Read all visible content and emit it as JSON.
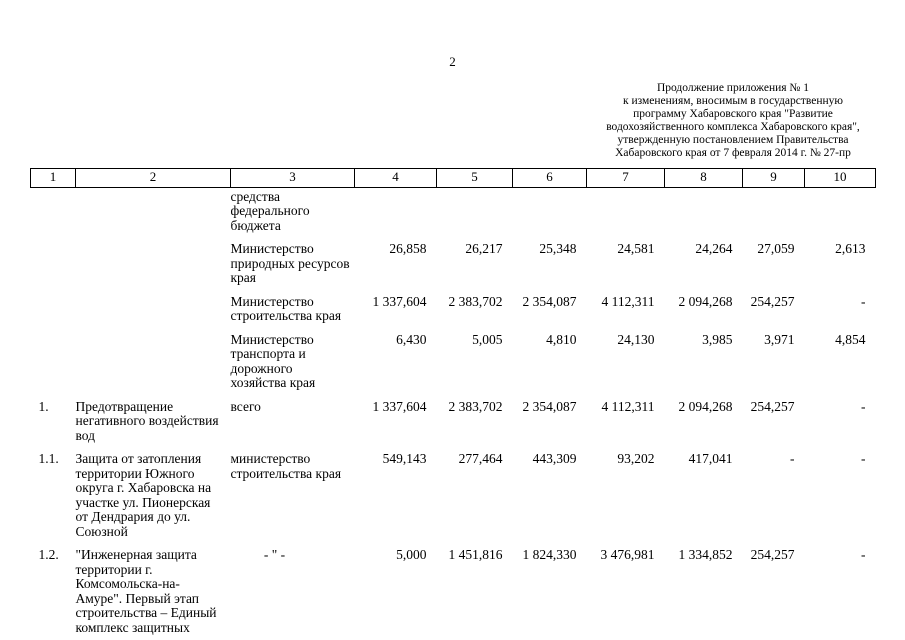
{
  "page": {
    "number": "2",
    "continuation_header": [
      "Продолжение приложения № 1",
      "к изменениям, вносимым в государственную",
      "программу Хабаровского края \"Развитие",
      "водохозяйственного комплекса Хабаровского края\",",
      "утвержденную постановлением Правительства",
      "Хабаровского края от 7 февраля 2014 г. № 27-пр"
    ]
  },
  "table": {
    "column_numbers": [
      "1",
      "2",
      "3",
      "4",
      "5",
      "6",
      "7",
      "8",
      "9",
      "10"
    ],
    "rows": [
      {
        "num": "",
        "name": "",
        "executor": "средства федерального бюджета",
        "values": [
          "",
          "",
          "",
          "",
          "",
          "",
          ""
        ]
      },
      {
        "num": "",
        "name": "",
        "executor": "Министерство природных ресурсов края",
        "values": [
          "26,858",
          "26,217",
          "25,348",
          "24,581",
          "24,264",
          "27,059",
          "2,613"
        ]
      },
      {
        "num": "",
        "name": "",
        "executor": "Министерство строительства края",
        "values": [
          "1 337,604",
          "2 383,702",
          "2 354,087",
          "4 112,311",
          "2 094,268",
          "254,257",
          "-"
        ]
      },
      {
        "num": "",
        "name": "",
        "executor": "Министерство транспорта и дорожного хозяйства края",
        "values": [
          "6,430",
          "5,005",
          "4,810",
          "24,130",
          "3,985",
          "3,971",
          "4,854"
        ]
      },
      {
        "num": "1.",
        "name": "Предотвращение негативного воздействия вод",
        "executor": "всего",
        "values": [
          "1 337,604",
          "2 383,702",
          "2 354,087",
          "4 112,311",
          "2 094,268",
          "254,257",
          "-"
        ]
      },
      {
        "num": "1.1.",
        "name": "Защита от затопления территории Южного округа г. Хабаровска на участке ул. Пионерская от Дендрария до ул. Союзной",
        "executor": "министерство строительства края",
        "values": [
          "549,143",
          "277,464",
          "443,309",
          "93,202",
          "417,041",
          "-",
          "-"
        ]
      },
      {
        "num": "1.2.",
        "name": "\"Инженерная защита территории г. Комсомольска-на-Амуре\". Первый этап строительства – Единый комплекс защитных",
        "executor": "- \" -",
        "values": [
          "5,000",
          "1 451,816",
          "1 824,330",
          "3 476,981",
          "1 334,852",
          "254,257",
          "-"
        ]
      }
    ]
  }
}
